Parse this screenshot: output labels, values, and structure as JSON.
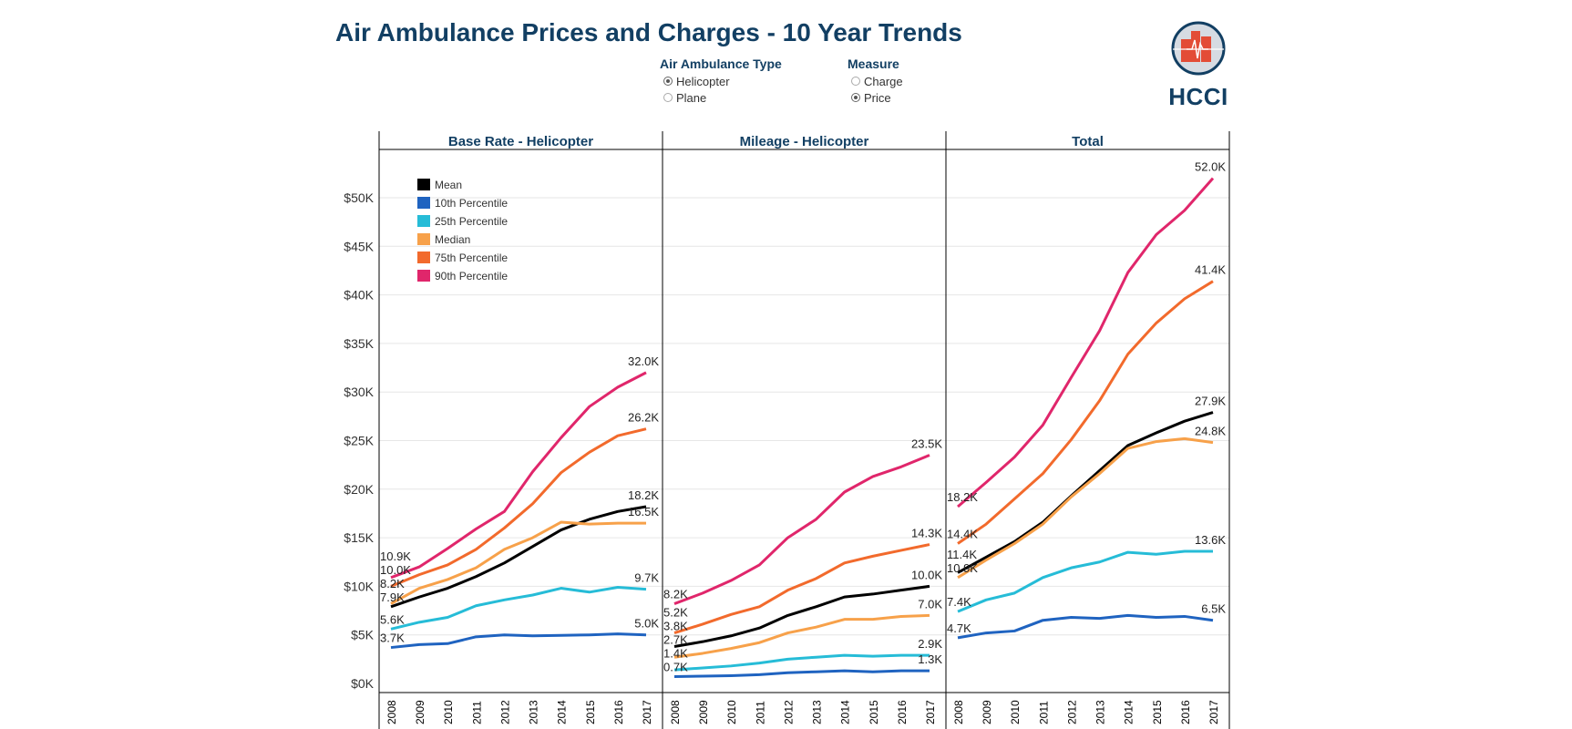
{
  "title": "Air Ambulance Prices and Charges - 10 Year Trends",
  "filters": {
    "type": {
      "label": "Air Ambulance Type",
      "options": [
        {
          "label": "Helicopter",
          "selected": true
        },
        {
          "label": "Plane",
          "selected": false
        }
      ]
    },
    "measure": {
      "label": "Measure",
      "options": [
        {
          "label": "Charge",
          "selected": false
        },
        {
          "label": "Price",
          "selected": true
        }
      ]
    }
  },
  "logo": {
    "text": "HCCI",
    "colors": {
      "navy": "#123f63",
      "red": "#e34c36",
      "ring": "#d6dbe2"
    }
  },
  "chart_data": {
    "type": "line",
    "ylim": [
      0,
      55
    ],
    "y_ticks": [
      0,
      5,
      10,
      15,
      20,
      25,
      30,
      35,
      40,
      45,
      50
    ],
    "y_tick_labels": [
      "$0K",
      "$5K",
      "$10K",
      "$15K",
      "$20K",
      "$25K",
      "$30K",
      "$35K",
      "$40K",
      "$45K",
      "$50K"
    ],
    "y_unit": "K USD",
    "grid": true,
    "legend_placement": "top-left",
    "x": [
      "2008",
      "2009",
      "2010",
      "2011",
      "2012",
      "2013",
      "2014",
      "2015",
      "2016",
      "2017"
    ],
    "series_colors": {
      "Mean": "#000000",
      "10th Percentile": "#1f63c0",
      "25th Percentile": "#26bcd7",
      "Median": "#f7a14a",
      "75th Percentile": "#f26a2c",
      "90th Percentile": "#e0266b"
    },
    "legend": [
      "Mean",
      "10th Percentile",
      "25th Percentile",
      "Median",
      "75th Percentile",
      "90th Percentile"
    ],
    "panels": [
      {
        "title": "Base Rate - Helicopter",
        "series": [
          {
            "name": "Mean",
            "values": [
              7.9,
              8.9,
              9.8,
              11.0,
              12.4,
              14.1,
              15.8,
              16.9,
              17.7,
              18.2
            ],
            "first_label": "7.9K",
            "last_label": "18.2K"
          },
          {
            "name": "10th Percentile",
            "values": [
              3.7,
              4.0,
              4.1,
              4.8,
              5.0,
              4.9,
              4.95,
              5.0,
              5.1,
              5.0
            ],
            "first_label": "3.7K",
            "last_label": "5.0K"
          },
          {
            "name": "25th Percentile",
            "values": [
              5.6,
              6.3,
              6.8,
              8.0,
              8.6,
              9.1,
              9.8,
              9.4,
              9.9,
              9.7
            ],
            "first_label": "5.6K",
            "last_label": "9.7K"
          },
          {
            "name": "Median",
            "values": [
              8.2,
              9.8,
              10.7,
              11.9,
              13.8,
              15.0,
              16.6,
              16.4,
              16.5,
              16.5
            ],
            "first_label": "8.2K",
            "last_label": "16.5K"
          },
          {
            "name": "75th Percentile",
            "values": [
              10.0,
              11.2,
              12.2,
              13.8,
              16.0,
              18.5,
              21.7,
              23.8,
              25.5,
              26.2
            ],
            "first_label": "10.0K",
            "last_label": "26.2K"
          },
          {
            "name": "90th Percentile",
            "values": [
              10.9,
              12.0,
              13.9,
              15.9,
              17.7,
              21.8,
              25.3,
              28.5,
              30.5,
              32.0
            ],
            "first_label": "10.9K",
            "last_label": "32.0K"
          }
        ]
      },
      {
        "title": "Mileage - Helicopter",
        "series": [
          {
            "name": "Mean",
            "values": [
              3.8,
              4.3,
              4.9,
              5.7,
              7.0,
              7.9,
              8.9,
              9.2,
              9.6,
              10.0
            ],
            "first_label": "3.8K",
            "last_label": "10.0K"
          },
          {
            "name": "10th Percentile",
            "values": [
              0.7,
              0.75,
              0.8,
              0.9,
              1.1,
              1.2,
              1.3,
              1.2,
              1.3,
              1.3
            ],
            "first_label": "0.7K",
            "last_label": "1.3K"
          },
          {
            "name": "25th Percentile",
            "values": [
              1.4,
              1.6,
              1.8,
              2.1,
              2.5,
              2.7,
              2.9,
              2.8,
              2.9,
              2.9
            ],
            "first_label": "1.4K",
            "last_label": "2.9K"
          },
          {
            "name": "Median",
            "values": [
              2.7,
              3.1,
              3.6,
              4.2,
              5.2,
              5.8,
              6.6,
              6.6,
              6.9,
              7.0
            ],
            "first_label": "2.7K",
            "last_label": "7.0K"
          },
          {
            "name": "75th Percentile",
            "values": [
              5.2,
              6.1,
              7.1,
              7.9,
              9.6,
              10.8,
              12.4,
              13.1,
              13.7,
              14.3
            ],
            "first_label": "5.2K",
            "last_label": "14.3K"
          },
          {
            "name": "90th Percentile",
            "values": [
              8.2,
              9.3,
              10.6,
              12.2,
              15.0,
              16.9,
              19.7,
              21.3,
              22.3,
              23.5
            ],
            "first_label": "8.2K",
            "last_label": "23.5K"
          }
        ]
      },
      {
        "title": "Total",
        "series": [
          {
            "name": "Mean",
            "values": [
              11.4,
              13.0,
              14.6,
              16.6,
              19.3,
              21.9,
              24.5,
              25.8,
              27.0,
              27.9
            ],
            "first_label": "11.4K",
            "last_label": "27.9K"
          },
          {
            "name": "10th Percentile",
            "values": [
              4.7,
              5.2,
              5.4,
              6.5,
              6.8,
              6.7,
              7.0,
              6.8,
              6.9,
              6.5
            ],
            "first_label": "4.7K",
            "last_label": "6.5K"
          },
          {
            "name": "25th Percentile",
            "values": [
              7.4,
              8.6,
              9.3,
              10.9,
              11.9,
              12.5,
              13.5,
              13.3,
              13.6,
              13.6
            ],
            "first_label": "7.4K",
            "last_label": "13.6K"
          },
          {
            "name": "Median",
            "values": [
              10.9,
              12.7,
              14.4,
              16.4,
              19.2,
              21.6,
              24.2,
              24.9,
              25.2,
              24.8
            ],
            "first_label": "10.9K",
            "last_label": "24.8K"
          },
          {
            "name": "75th Percentile",
            "values": [
              14.4,
              16.4,
              19.0,
              21.6,
              25.1,
              29.1,
              33.9,
              37.1,
              39.6,
              41.4
            ],
            "first_label": "14.4K",
            "last_label": "41.4K"
          },
          {
            "name": "90th Percentile",
            "values": [
              18.2,
              20.7,
              23.3,
              26.6,
              31.5,
              36.3,
              42.3,
              46.2,
              48.7,
              52.0
            ],
            "first_label": "18.2K",
            "last_label": "52.0K"
          }
        ]
      }
    ]
  }
}
